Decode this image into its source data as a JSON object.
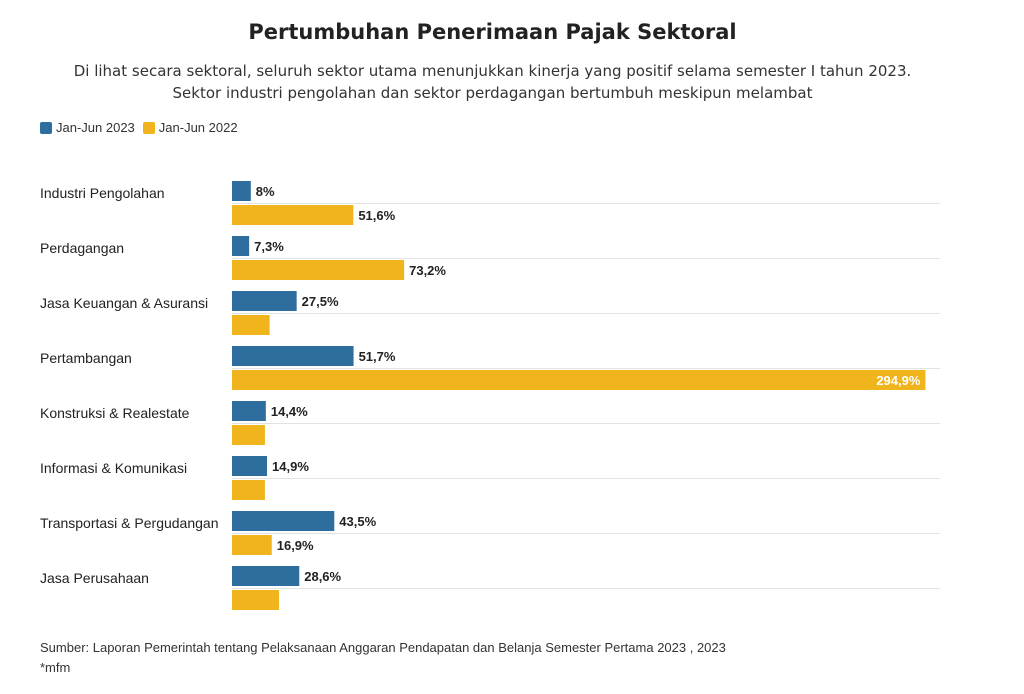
{
  "title": "Pertumbuhan Penerimaan Pajak Sektoral",
  "subtitle_lines": [
    "Di lihat secara sektoral, seluruh sektor utama menunjukkan kinerja yang positif selama semester I tahun 2023.",
    "Sektor industri pengolahan dan sektor perdagangan bertumbuh meskipun melambat"
  ],
  "source": "Sumber: Laporan Pemerintah tentang Pelaksanaan Anggaran Pendapatan dan Belanja Semester Pertama 2023 , 2023",
  "note": "*mfm",
  "colors": {
    "series_2023": "#2e6e9e",
    "series_2022": "#f0b41c"
  },
  "chart_data": {
    "type": "bar",
    "orientation": "horizontal",
    "grid": "horizontal separators",
    "legend_position": "top-left",
    "categories": [
      "Industri Pengolahan",
      "Perdagangan",
      "Jasa Keuangan & Asuransi",
      "Pertambangan",
      "Konstruksi & Realestate",
      "Informasi & Komunikasi",
      "Transportasi & Pergudangan",
      "Jasa Perusahaan"
    ],
    "series": [
      {
        "name": "Jan-Jun 2023",
        "values": [
          8.0,
          7.3,
          27.5,
          51.7,
          14.4,
          14.9,
          43.5,
          28.6
        ],
        "labels": [
          "8%",
          "7,3%",
          "27,5%",
          "51,7%",
          "14,4%",
          "14,9%",
          "43,5%",
          "28,6%"
        ]
      },
      {
        "name": "Jan-Jun 2022",
        "values": [
          51.6,
          73.2,
          16.0,
          294.9,
          14.0,
          14.0,
          16.9,
          20.0
        ],
        "labels": [
          "51,6%",
          "73,2%",
          "",
          "294,9%",
          "",
          "",
          "16,9%",
          ""
        ]
      }
    ],
    "xlim": [
      0,
      296
    ]
  }
}
